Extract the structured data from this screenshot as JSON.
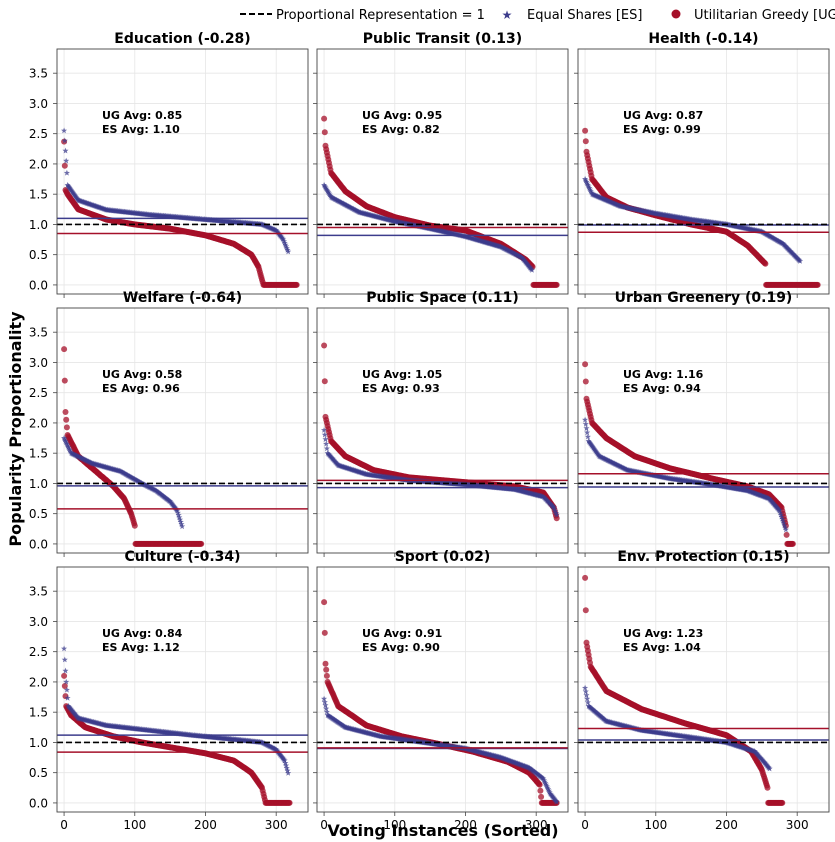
{
  "legend": {
    "items": [
      {
        "label": "Proportional Representation = 1",
        "marker": "dashed-line",
        "color": "#000000"
      },
      {
        "label": "Equal Shares [ES]",
        "marker": "star",
        "color": "#3c3c8c"
      },
      {
        "label": "Utilitarian Greedy [UG]",
        "marker": "circle",
        "color": "#a5102a"
      }
    ]
  },
  "colors": {
    "es": "#3c3c8c",
    "ug": "#a5102a",
    "reference": "#000000"
  },
  "chart_data": {
    "type": "scatter",
    "layout": "3x3 grid, shared axes",
    "xlabel": "Voting Instances (Sorted)",
    "ylabel": "Popularity Proportionality",
    "xlim": [
      -10,
      345
    ],
    "ylim": [
      -0.15,
      3.9
    ],
    "xticks": [
      "0",
      "100",
      "200",
      "300"
    ],
    "yticks": [
      "0.0",
      "0.5",
      "1.0",
      "1.5",
      "2.0",
      "2.5",
      "3.0",
      "3.5"
    ],
    "reference_line": 1.0,
    "grid": true,
    "legend_position": "top",
    "panels": [
      {
        "title": "Education (-0.28)",
        "ug_avg_label": "UG Avg: 0.85",
        "es_avg_label": "ES Avg: 1.10",
        "ug_avg": 0.85,
        "es_avg": 1.1,
        "es": {
          "n": 318,
          "points": [
            [
              0,
              2.55
            ],
            [
              3,
              2.05
            ],
            [
              5,
              1.65
            ],
            [
              20,
              1.4
            ],
            [
              60,
              1.24
            ],
            [
              120,
              1.16
            ],
            [
              180,
              1.1
            ],
            [
              240,
              1.04
            ],
            [
              280,
              1.0
            ],
            [
              300,
              0.9
            ],
            [
              310,
              0.75
            ],
            [
              318,
              0.52
            ]
          ]
        },
        "ug": {
          "n": 330,
          "points": [
            [
              0,
              2.37
            ],
            [
              2,
              1.57
            ],
            [
              5,
              1.5
            ],
            [
              20,
              1.25
            ],
            [
              60,
              1.08
            ],
            [
              100,
              1.0
            ],
            [
              150,
              0.93
            ],
            [
              200,
              0.82
            ],
            [
              240,
              0.68
            ],
            [
              265,
              0.5
            ],
            [
              275,
              0.3
            ],
            [
              282,
              0.0
            ],
            [
              330,
              0.0
            ]
          ]
        }
      },
      {
        "title": "Public Transit (0.13)",
        "ug_avg_label": "UG Avg: 0.95",
        "es_avg_label": "ES Avg: 0.82",
        "ug_avg": 0.95,
        "es_avg": 0.82,
        "es": {
          "n": 295,
          "points": [
            [
              0,
              1.65
            ],
            [
              10,
              1.45
            ],
            [
              50,
              1.2
            ],
            [
              100,
              1.05
            ],
            [
              150,
              0.93
            ],
            [
              200,
              0.8
            ],
            [
              250,
              0.63
            ],
            [
              280,
              0.45
            ],
            [
              295,
              0.23
            ]
          ]
        },
        "ug": {
          "n": 330,
          "points": [
            [
              0,
              2.75
            ],
            [
              2,
              2.3
            ],
            [
              10,
              1.85
            ],
            [
              30,
              1.55
            ],
            [
              60,
              1.3
            ],
            [
              100,
              1.12
            ],
            [
              150,
              0.98
            ],
            [
              200,
              0.9
            ],
            [
              250,
              0.68
            ],
            [
              285,
              0.42
            ],
            [
              295,
              0.3
            ],
            [
              296,
              0.0
            ],
            [
              330,
              0.0
            ]
          ]
        }
      },
      {
        "title": "Health (-0.14)",
        "ug_avg_label": "UG Avg: 0.87",
        "es_avg_label": "ES Avg: 0.99",
        "ug_avg": 0.87,
        "es_avg": 0.99,
        "es": {
          "n": 305,
          "points": [
            [
              0,
              1.75
            ],
            [
              10,
              1.5
            ],
            [
              50,
              1.3
            ],
            [
              100,
              1.18
            ],
            [
              150,
              1.08
            ],
            [
              200,
              1.0
            ],
            [
              250,
              0.88
            ],
            [
              280,
              0.68
            ],
            [
              305,
              0.38
            ]
          ]
        },
        "ug": {
          "n": 330,
          "points": [
            [
              0,
              2.55
            ],
            [
              2,
              2.2
            ],
            [
              10,
              1.75
            ],
            [
              30,
              1.45
            ],
            [
              60,
              1.28
            ],
            [
              100,
              1.15
            ],
            [
              150,
              1.0
            ],
            [
              200,
              0.88
            ],
            [
              230,
              0.65
            ],
            [
              255,
              0.35
            ],
            [
              256,
              0.0
            ],
            [
              330,
              0.0
            ]
          ]
        }
      },
      {
        "title": "Welfare (-0.64)",
        "ug_avg_label": "UG Avg: 0.58",
        "es_avg_label": "ES Avg: 0.96",
        "ug_avg": 0.58,
        "es_avg": 0.96,
        "es": {
          "n": 168,
          "points": [
            [
              0,
              1.75
            ],
            [
              10,
              1.5
            ],
            [
              40,
              1.33
            ],
            [
              80,
              1.2
            ],
            [
              110,
              1.0
            ],
            [
              130,
              0.88
            ],
            [
              150,
              0.7
            ],
            [
              160,
              0.55
            ],
            [
              168,
              0.25
            ]
          ]
        },
        "ug": {
          "n": 195,
          "points": [
            [
              0,
              3.22
            ],
            [
              2,
              2.18
            ],
            [
              5,
              1.8
            ],
            [
              20,
              1.45
            ],
            [
              50,
              1.15
            ],
            [
              70,
              0.95
            ],
            [
              85,
              0.75
            ],
            [
              95,
              0.5
            ],
            [
              100,
              0.3
            ],
            [
              101,
              0.0
            ],
            [
              195,
              0.0
            ]
          ]
        }
      },
      {
        "title": "Public Space (0.11)",
        "ug_avg_label": "UG Avg: 1.05",
        "es_avg_label": "ES Avg: 0.93",
        "ug_avg": 1.05,
        "es_avg": 0.93,
        "es": {
          "n": 330,
          "points": [
            [
              0,
              1.88
            ],
            [
              5,
              1.5
            ],
            [
              20,
              1.3
            ],
            [
              60,
              1.15
            ],
            [
              120,
              1.05
            ],
            [
              200,
              0.98
            ],
            [
              270,
              0.9
            ],
            [
              310,
              0.78
            ],
            [
              325,
              0.6
            ],
            [
              330,
              0.45
            ]
          ]
        },
        "ug": {
          "n": 330,
          "points": [
            [
              0,
              3.28
            ],
            [
              2,
              2.1
            ],
            [
              10,
              1.7
            ],
            [
              30,
              1.45
            ],
            [
              70,
              1.22
            ],
            [
              120,
              1.1
            ],
            [
              200,
              1.02
            ],
            [
              270,
              0.95
            ],
            [
              310,
              0.85
            ],
            [
              325,
              0.6
            ],
            [
              330,
              0.38
            ]
          ]
        }
      },
      {
        "title": "Urban Greenery (0.19)",
        "ug_avg_label": "UG Avg: 1.16",
        "es_avg_label": "ES Avg: 0.94",
        "ug_avg": 1.16,
        "es_avg": 0.94,
        "es": {
          "n": 285,
          "points": [
            [
              0,
              2.05
            ],
            [
              5,
              1.7
            ],
            [
              20,
              1.45
            ],
            [
              60,
              1.22
            ],
            [
              120,
              1.08
            ],
            [
              180,
              0.98
            ],
            [
              230,
              0.88
            ],
            [
              260,
              0.75
            ],
            [
              275,
              0.55
            ],
            [
              285,
              0.2
            ]
          ]
        },
        "ug": {
          "n": 295,
          "points": [
            [
              0,
              2.97
            ],
            [
              2,
              2.4
            ],
            [
              10,
              2.0
            ],
            [
              30,
              1.75
            ],
            [
              70,
              1.45
            ],
            [
              120,
              1.25
            ],
            [
              180,
              1.08
            ],
            [
              230,
              0.95
            ],
            [
              260,
              0.82
            ],
            [
              278,
              0.6
            ],
            [
              284,
              0.3
            ],
            [
              286,
              0.0
            ],
            [
              295,
              0.0
            ]
          ]
        }
      },
      {
        "title": "Culture (-0.34)",
        "ug_avg_label": "UG Avg: 0.84",
        "es_avg_label": "ES Avg: 1.12",
        "ug_avg": 0.84,
        "es_avg": 1.12,
        "es": {
          "n": 318,
          "points": [
            [
              0,
              2.55
            ],
            [
              3,
              2.0
            ],
            [
              6,
              1.6
            ],
            [
              20,
              1.4
            ],
            [
              60,
              1.28
            ],
            [
              120,
              1.2
            ],
            [
              180,
              1.12
            ],
            [
              240,
              1.05
            ],
            [
              280,
              1.0
            ],
            [
              300,
              0.88
            ],
            [
              312,
              0.7
            ],
            [
              318,
              0.45
            ]
          ]
        },
        "ug": {
          "n": 320,
          "points": [
            [
              0,
              2.1
            ],
            [
              3,
              1.6
            ],
            [
              10,
              1.45
            ],
            [
              30,
              1.25
            ],
            [
              70,
              1.1
            ],
            [
              110,
              1.0
            ],
            [
              160,
              0.9
            ],
            [
              200,
              0.82
            ],
            [
              240,
              0.7
            ],
            [
              265,
              0.5
            ],
            [
              280,
              0.25
            ],
            [
              285,
              0.0
            ],
            [
              320,
              0.0
            ]
          ]
        }
      },
      {
        "title": "Sport (0.02)",
        "ug_avg_label": "UG Avg: 0.91",
        "es_avg_label": "ES Avg: 0.90",
        "ug_avg": 0.91,
        "es_avg": 0.9,
        "es": {
          "n": 330,
          "points": [
            [
              0,
              1.72
            ],
            [
              5,
              1.45
            ],
            [
              30,
              1.25
            ],
            [
              80,
              1.1
            ],
            [
              140,
              1.0
            ],
            [
              200,
              0.9
            ],
            [
              250,
              0.75
            ],
            [
              290,
              0.58
            ],
            [
              310,
              0.4
            ],
            [
              320,
              0.15
            ],
            [
              330,
              0.0
            ]
          ]
        },
        "ug": {
          "n": 330,
          "points": [
            [
              0,
              3.32
            ],
            [
              2,
              2.3
            ],
            [
              5,
              2.0
            ],
            [
              20,
              1.6
            ],
            [
              60,
              1.28
            ],
            [
              110,
              1.1
            ],
            [
              160,
              0.98
            ],
            [
              210,
              0.85
            ],
            [
              260,
              0.68
            ],
            [
              290,
              0.5
            ],
            [
              305,
              0.3
            ],
            [
              308,
              0.0
            ],
            [
              330,
              0.0
            ]
          ]
        }
      },
      {
        "title": "Env. Protection (0.15)",
        "ug_avg_label": "UG Avg: 1.23",
        "es_avg_label": "ES Avg: 1.04",
        "ug_avg": 1.23,
        "es_avg": 1.04,
        "es": {
          "n": 262,
          "points": [
            [
              0,
              1.9
            ],
            [
              5,
              1.6
            ],
            [
              30,
              1.35
            ],
            [
              80,
              1.2
            ],
            [
              140,
              1.1
            ],
            [
              200,
              1.0
            ],
            [
              240,
              0.85
            ],
            [
              255,
              0.65
            ],
            [
              262,
              0.55
            ]
          ]
        },
        "ug": {
          "n": 280,
          "points": [
            [
              0,
              3.72
            ],
            [
              2,
              2.65
            ],
            [
              8,
              2.25
            ],
            [
              30,
              1.85
            ],
            [
              80,
              1.55
            ],
            [
              140,
              1.32
            ],
            [
              200,
              1.12
            ],
            [
              235,
              0.85
            ],
            [
              250,
              0.55
            ],
            [
              258,
              0.25
            ],
            [
              259,
              0.0
            ],
            [
              280,
              0.0
            ]
          ]
        }
      }
    ]
  }
}
